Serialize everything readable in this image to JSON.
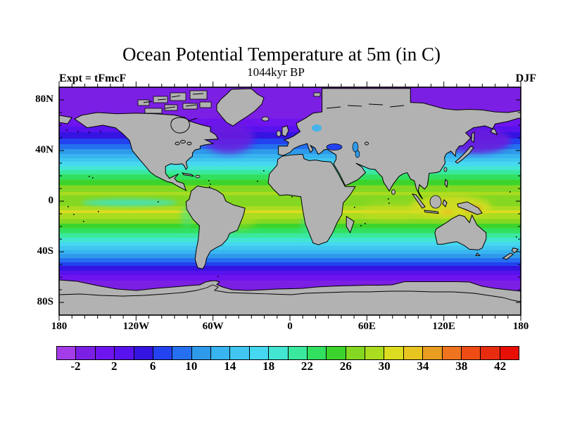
{
  "header": {
    "title": "Ocean Potential Temperature at 5m (in C)",
    "subtitle": "1044kyr BP",
    "experiment_label": "Expt = tFmcF",
    "season_label": "DJF"
  },
  "axes": {
    "lat_tick_labels": [
      "80N",
      "40N",
      "0",
      "40S",
      "80S"
    ],
    "lat_tick_degrees": [
      80,
      40,
      0,
      -40,
      -80
    ],
    "lon_tick_labels": [
      "180",
      "120W",
      "60W",
      "0",
      "60E",
      "120E",
      "180"
    ],
    "lon_tick_degrees": [
      -180,
      -120,
      -60,
      0,
      60,
      120,
      180
    ]
  },
  "colorbar": {
    "level_min_c": -4,
    "level_max_c": 44,
    "level_step_c": 2,
    "tick_labels": [
      "-2",
      "2",
      "6",
      "10",
      "14",
      "18",
      "22",
      "26",
      "30",
      "34",
      "38",
      "42"
    ],
    "cell_colors": [
      "#A43CE8",
      "#7C1FE4",
      "#6E14EE",
      "#5812EE",
      "#3414E0",
      "#2342F0",
      "#2470F0",
      "#2F9AEA",
      "#38B4F0",
      "#40C6F0",
      "#46D8F0",
      "#42E6D2",
      "#3AE89E",
      "#32E060",
      "#3CD42C",
      "#84D822",
      "#AADC20",
      "#DCDC20",
      "#E8C420",
      "#E89C20",
      "#EE7420",
      "#EE4C14",
      "#E82C10",
      "#E81004"
    ]
  },
  "map_style": {
    "land_color": "#b2b2b2",
    "coastline_color": "#000000",
    "frame_color": "#000000"
  },
  "chart_data": {
    "type": "heatmap",
    "title": "Ocean Potential Temperature at 5m (in C)",
    "subtitle": "1044kyr BP",
    "experiment": "tFmcF",
    "season": "DJF",
    "units": "C",
    "projection": "equirectangular world map, lon 180W-180E, lat 90S-90N",
    "contour_interval_c": 2,
    "level_range_c": [
      -4,
      44
    ],
    "colorbar_tick_labels_c": [
      -2,
      2,
      6,
      10,
      14,
      18,
      22,
      26,
      30,
      34,
      38,
      42
    ],
    "palette_hex": [
      "#A43CE8",
      "#7C1FE4",
      "#6E14EE",
      "#5812EE",
      "#3414E0",
      "#2342F0",
      "#2470F0",
      "#2F9AEA",
      "#38B4F0",
      "#40C6F0",
      "#46D8F0",
      "#42E6D2",
      "#3AE89E",
      "#32E060",
      "#3CD42C",
      "#84D822",
      "#AADC20",
      "#DCDC20",
      "#E8C420",
      "#E89C20",
      "#EE7420",
      "#EE4C14",
      "#E82C10",
      "#E81004"
    ],
    "zonal_mean_profile": {
      "lat_deg": [
        90,
        78,
        70,
        63,
        57,
        52,
        47,
        43,
        39,
        35,
        31,
        27,
        23,
        19,
        15,
        10,
        6,
        2,
        0,
        -4,
        -8,
        -12,
        -16,
        -20,
        -24,
        -28,
        -32,
        -36,
        -40,
        -44,
        -48,
        -51,
        -54,
        -57,
        -60,
        -64,
        -75,
        -90
      ],
      "temp_c": [
        -2,
        -2,
        -1,
        0.5,
        3,
        5,
        7,
        9,
        11,
        13.5,
        16,
        18.5,
        21,
        23,
        25,
        27,
        28.5,
        26.8,
        26.5,
        28,
        30.5,
        29,
        27,
        24.5,
        22.5,
        20.5,
        18,
        15.5,
        13,
        10.5,
        8,
        6,
        4.5,
        2.5,
        1,
        -0.5,
        -2,
        -2
      ]
    },
    "regional_features": [
      "Indo-Pacific warm pool reaches 30-34C (yellow/orange) near Indonesia and NW Australia",
      "equatorial east Pacific cool tongue ~20-22C (cyan) inside green band",
      "DJF cold purple (<0C) tongues in NW Atlantic (Labrador Sea) and NW Pacific (Okhotsk/Japan)",
      "polar oceans below 0C (purple), tropics 26-32C (yellow-green)",
      "gray land mask with blocky model grid edges; Hudson Bay masked as land"
    ]
  }
}
